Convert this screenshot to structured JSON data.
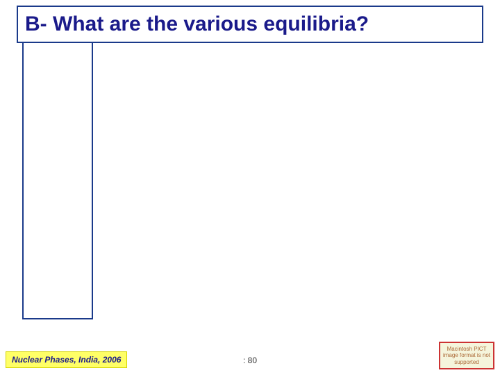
{
  "title": {
    "text": "B- What are the various equilibria?",
    "color": "#1a1a8a",
    "border_color": "#1a3a8a",
    "fontsize": 30,
    "font_weight": "bold"
  },
  "content_box": {
    "border_color": "#1a3a8a"
  },
  "footer": {
    "left_label": "Nuclear Phases, India, 2006",
    "left_bg": "#ffff66",
    "center_label": ": 80",
    "right_label": "Macintosh PICT image format is not supported",
    "right_border": "#cc3333",
    "right_bg": "#f5f5dc"
  },
  "background_color": "#ffffff"
}
